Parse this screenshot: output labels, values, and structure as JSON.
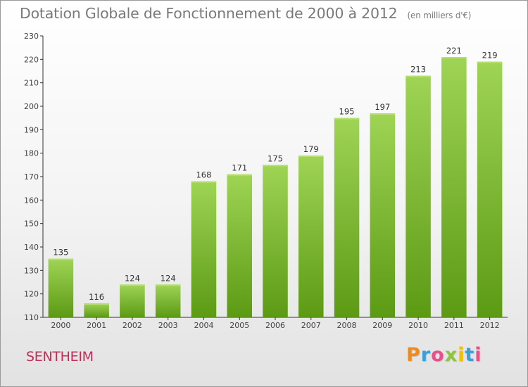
{
  "header": {
    "title": "Dotation Globale de Fonctionnement de 2000 à 2012",
    "unit": "(en milliers d'€)"
  },
  "footer": {
    "commune": "SENTHEIM",
    "brand": "Proxiti",
    "brand_letters": [
      {
        "ch": "P",
        "color": "#f08a1c"
      },
      {
        "ch": "r",
        "color": "#3aa0da"
      },
      {
        "ch": "o",
        "color": "#e94f8a"
      },
      {
        "ch": "x",
        "color": "#8cc63f"
      },
      {
        "ch": "i",
        "color": "#f2c200"
      },
      {
        "ch": "t",
        "color": "#3aa0da"
      },
      {
        "ch": "i",
        "color": "#e94f8a"
      }
    ]
  },
  "colors": {
    "bar_top": "#9fd455",
    "bar_bottom": "#5c9a14",
    "axis": "#333333",
    "commune": "#c42d58"
  },
  "chart_data": {
    "type": "bar",
    "title": "Dotation Globale de Fonctionnement de 2000 à 2012",
    "subtitle": "(en milliers d'€)",
    "xlabel": "",
    "ylabel": "",
    "categories": [
      "2000",
      "2001",
      "2002",
      "2003",
      "2004",
      "2005",
      "2006",
      "2007",
      "2008",
      "2009",
      "2010",
      "2011",
      "2012"
    ],
    "values": [
      135,
      116,
      124,
      124,
      168,
      171,
      175,
      179,
      195,
      197,
      213,
      221,
      219
    ],
    "data_labels": [
      "135",
      "116",
      "124",
      "124",
      "168",
      "171",
      "175",
      "179",
      "195",
      "197",
      "213",
      "221",
      "219"
    ],
    "ylim": [
      110,
      230
    ],
    "yticks": [
      110,
      120,
      130,
      140,
      150,
      160,
      170,
      180,
      190,
      200,
      210,
      220,
      230
    ],
    "grid": false,
    "legend": "none"
  }
}
